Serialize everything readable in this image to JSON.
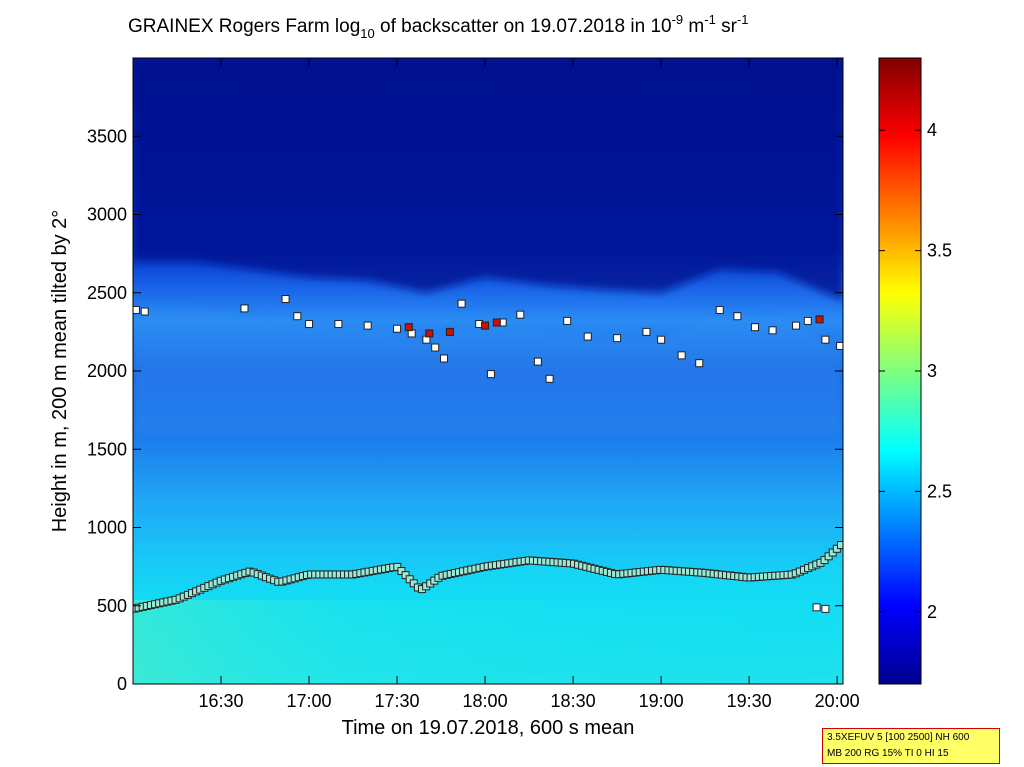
{
  "chart_data": {
    "type": "heatmap",
    "title_parts": {
      "main": "GRAINEX Rogers Farm log",
      "sub": "10",
      "middle": " of backscatter on 19.07.2018 in 10",
      "sup1": "-9",
      "unit_m": " m",
      "sup2": "-1",
      "unit_sr": " sr",
      "sup3": "-1"
    },
    "xlabel": "Time on 19.07.2018, 600 s mean",
    "ylabel": "Height in m, 200 m mean tilted by 2°",
    "x_ticks": [
      "16:30",
      "17:00",
      "17:30",
      "18:00",
      "18:30",
      "19:00",
      "19:30",
      "20:00"
    ],
    "x_tick_minutes": [
      990,
      1020,
      1050,
      1080,
      1110,
      1140,
      1170,
      1200
    ],
    "xlim_minutes": [
      960,
      1202
    ],
    "y_ticks": [
      "0",
      "500",
      "1000",
      "1500",
      "2000",
      "2500",
      "3000",
      "3500"
    ],
    "y_tick_values": [
      0,
      500,
      1000,
      1500,
      2000,
      2500,
      3000,
      3500
    ],
    "ylim": [
      0,
      4000
    ],
    "colorbar": {
      "ticks": [
        "2",
        "2.5",
        "3",
        "3.5",
        "4"
      ],
      "tick_values": [
        2,
        2.5,
        3,
        3.5,
        4
      ],
      "range": [
        1.7,
        4.3
      ],
      "colormap": "jet"
    },
    "layers": {
      "boundary_layer_top_minutes": [
        960,
        975,
        990,
        1000,
        1010,
        1020,
        1035,
        1050,
        1058,
        1065,
        1080,
        1095,
        1110,
        1125,
        1140,
        1155,
        1170,
        1185,
        1195,
        1202
      ],
      "boundary_layer_top_heights": [
        480,
        540,
        660,
        720,
        650,
        700,
        700,
        750,
        600,
        690,
        750,
        790,
        770,
        700,
        730,
        710,
        680,
        700,
        780,
        900
      ],
      "residual_layer_top_minutes": [
        960,
        980,
        1000,
        1020,
        1040,
        1060,
        1080,
        1100,
        1120,
        1140,
        1160,
        1180,
        1202
      ],
      "residual_layer_top_heights": [
        2400,
        2400,
        2350,
        2300,
        2280,
        2200,
        2300,
        2250,
        2220,
        2200,
        2350,
        2330,
        2150
      ]
    },
    "marker_series": [
      {
        "minutes": [
          961,
          964,
          998,
          1012,
          1016,
          1020,
          1030,
          1040,
          1050,
          1055,
          1060,
          1063,
          1066,
          1072,
          1078,
          1082,
          1086,
          1092,
          1098,
          1102,
          1108,
          1115,
          1125,
          1135,
          1140,
          1147,
          1153,
          1160,
          1166,
          1172,
          1178,
          1186,
          1190,
          1196,
          1201
        ],
        "heights": [
          2390,
          2380,
          2400,
          2460,
          2350,
          2300,
          2300,
          2290,
          2270,
          2240,
          2200,
          2150,
          2080,
          2430,
          2300,
          1980,
          2310,
          2360,
          2060,
          1950,
          2320,
          2220,
          2210,
          2250,
          2200,
          2100,
          2050,
          2390,
          2350,
          2280,
          2260,
          2290,
          2320,
          2200,
          2160
        ],
        "color": "#ffffff"
      },
      {
        "minutes": [
          1054,
          1061,
          1068,
          1080,
          1084,
          1194
        ],
        "heights": [
          2280,
          2240,
          2250,
          2290,
          2310,
          2330
        ],
        "color": "#cc1100"
      }
    ],
    "bl_markers": {
      "minutes": [
        1193,
        1196
      ],
      "heights": [
        490,
        480
      ]
    }
  },
  "info": {
    "line1": "3.5XEFUV 5 [100 2500] NH 600",
    "line2": "MB 200 RG 15% TI 0 HI 15"
  }
}
